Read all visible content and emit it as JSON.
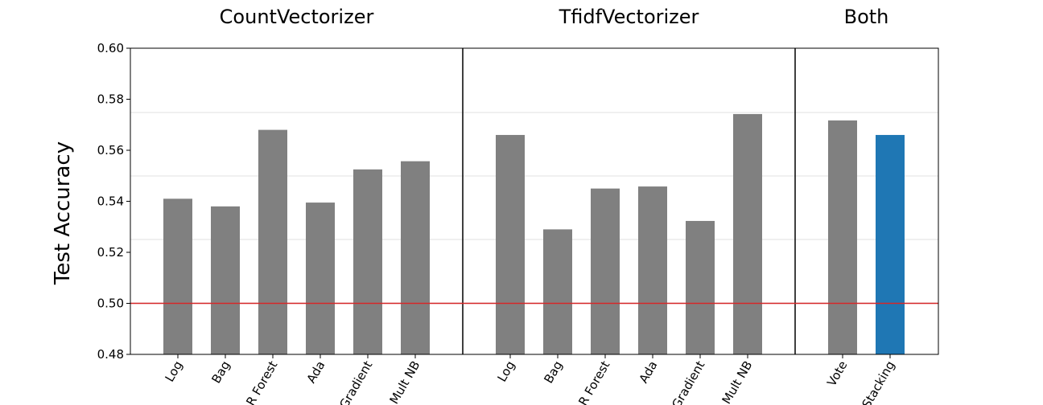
{
  "chart_data": {
    "type": "bar",
    "ylabel": "Test Accuracy",
    "ylim": [
      0.48,
      0.6
    ],
    "yticks": [
      "0.48",
      "0.50",
      "0.52",
      "0.54",
      "0.56",
      "0.58",
      "0.60"
    ],
    "reference_line": {
      "y": 0.5,
      "color": "#d62728"
    },
    "grid": "horizontal, light",
    "colors": {
      "default": "#808080",
      "highlight": "#1f77b4",
      "divider": "#000000"
    },
    "groups": [
      {
        "title": "CountVectorizer",
        "categories": [
          "Log",
          "Bag",
          "R Forest",
          "Ada",
          "Gradient",
          "Mult NB"
        ],
        "values": [
          0.541,
          0.538,
          0.568,
          0.5395,
          0.5525,
          0.5557
        ]
      },
      {
        "title": "TfidfVectorizer",
        "categories": [
          "Log",
          "Bag",
          "R Forest",
          "Ada",
          "Gradient",
          "Mult NB"
        ],
        "values": [
          0.566,
          0.529,
          0.545,
          0.5458,
          0.5323,
          0.5742
        ]
      },
      {
        "title": "Both",
        "categories": [
          "Vote",
          "Stacking"
        ],
        "values": [
          0.5717,
          0.566
        ],
        "highlight_index": 1
      }
    ]
  }
}
